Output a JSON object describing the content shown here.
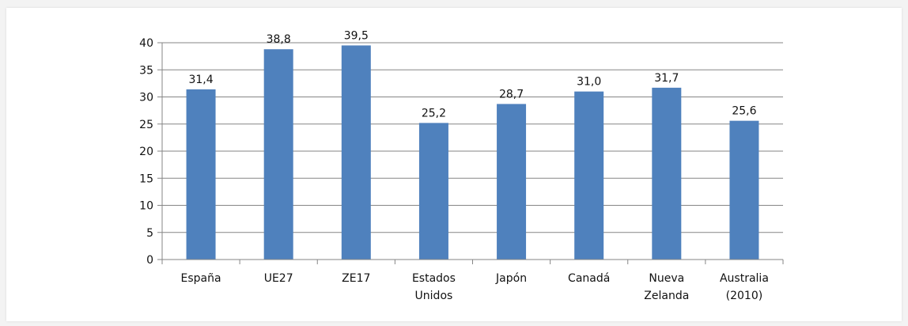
{
  "chart_data": {
    "type": "bar",
    "categories": [
      [
        "España"
      ],
      [
        "UE27"
      ],
      [
        "ZE17"
      ],
      [
        "Estados",
        "Unidos"
      ],
      [
        "Japón"
      ],
      [
        "Canadá"
      ],
      [
        "Nueva",
        "Zelanda"
      ],
      [
        "Australia",
        "(2010)"
      ]
    ],
    "values": [
      31.4,
      38.8,
      39.5,
      25.2,
      28.7,
      31.0,
      31.7,
      25.6
    ],
    "value_labels": [
      "31,4",
      "38,8",
      "39,5",
      "25,2",
      "28,7",
      "31,0",
      "31,7",
      "25,6"
    ],
    "yticks": [
      "0",
      "5",
      "10",
      "15",
      "20",
      "25",
      "30",
      "35",
      "40"
    ],
    "ylim": [
      0,
      40
    ],
    "title": "",
    "xlabel": "",
    "ylabel": "",
    "grid": true,
    "legend": "none",
    "bar_color": "#4f81bd",
    "grid_color": "#868686"
  }
}
